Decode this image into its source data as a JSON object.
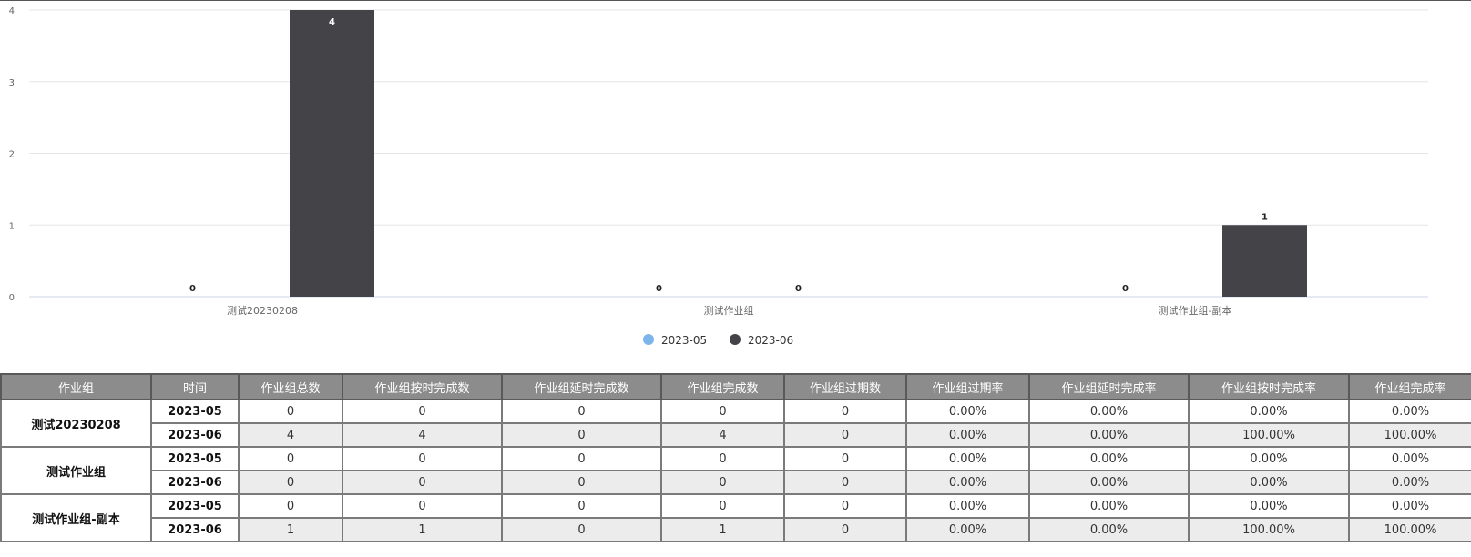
{
  "chart_data": {
    "type": "bar",
    "categories": [
      "测试20230208",
      "测试作业组",
      "测试作业组-副本"
    ],
    "series": [
      {
        "name": "2023-05",
        "values": [
          0,
          0,
          0
        ],
        "color": "#7cb5ec"
      },
      {
        "name": "2023-06",
        "values": [
          4,
          0,
          1
        ],
        "color": "#434348"
      }
    ],
    "ylim": [
      0,
      4
    ],
    "yticks": [
      0,
      1,
      2,
      3,
      4
    ],
    "legend_position": "bottom-center"
  },
  "table": {
    "headers": [
      "作业组",
      "时间",
      "作业组总数",
      "作业组按时完成数",
      "作业组延时完成数",
      "作业组完成数",
      "作业组过期数",
      "作业组过期率",
      "作业组延时完成率",
      "作业组按时完成率",
      "作业组完成率"
    ],
    "groups": [
      {
        "name": "测试20230208",
        "rows": [
          {
            "time": "2023-05",
            "cells": [
              "0",
              "0",
              "0",
              "0",
              "0",
              "0.00%",
              "0.00%",
              "0.00%",
              "0.00%"
            ]
          },
          {
            "time": "2023-06",
            "cells": [
              "4",
              "4",
              "0",
              "4",
              "0",
              "0.00%",
              "0.00%",
              "100.00%",
              "100.00%"
            ]
          }
        ]
      },
      {
        "name": "测试作业组",
        "rows": [
          {
            "time": "2023-05",
            "cells": [
              "0",
              "0",
              "0",
              "0",
              "0",
              "0.00%",
              "0.00%",
              "0.00%",
              "0.00%"
            ]
          },
          {
            "time": "2023-06",
            "cells": [
              "0",
              "0",
              "0",
              "0",
              "0",
              "0.00%",
              "0.00%",
              "0.00%",
              "0.00%"
            ]
          }
        ]
      },
      {
        "name": "测试作业组-副本",
        "rows": [
          {
            "time": "2023-05",
            "cells": [
              "0",
              "0",
              "0",
              "0",
              "0",
              "0.00%",
              "0.00%",
              "0.00%",
              "0.00%"
            ]
          },
          {
            "time": "2023-06",
            "cells": [
              "1",
              "1",
              "0",
              "1",
              "0",
              "0.00%",
              "0.00%",
              "100.00%",
              "100.00%"
            ]
          }
        ]
      }
    ]
  }
}
